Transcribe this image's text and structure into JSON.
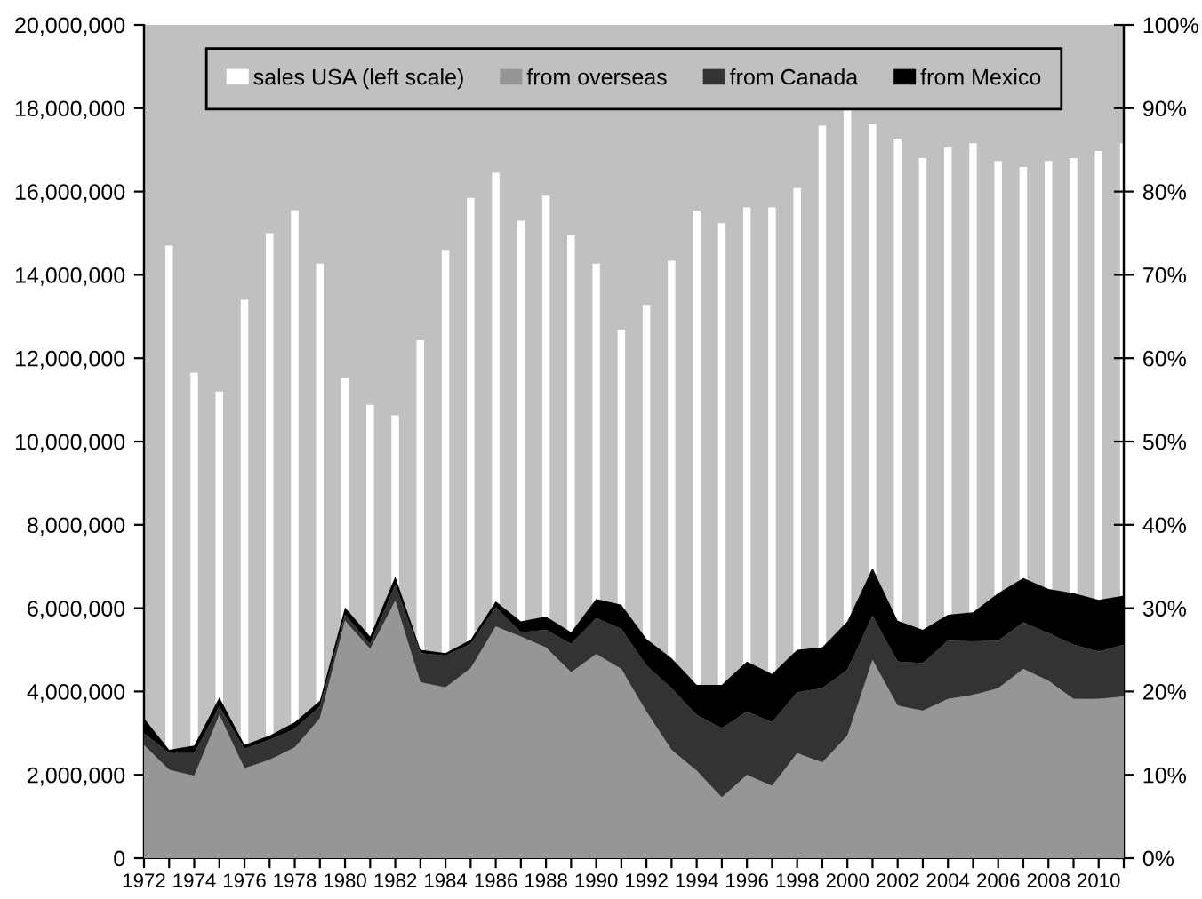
{
  "chart_data": {
    "type": "bar",
    "categories": [
      "1972",
      null,
      "1974",
      null,
      "1976",
      null,
      "1978",
      null,
      "1980",
      null,
      "1982",
      null,
      "1984",
      null,
      "1986",
      null,
      "1988",
      null,
      "1990",
      null,
      "1992",
      null,
      "1994",
      null,
      "1996",
      null,
      "1998",
      null,
      "2000",
      null,
      "2002",
      null,
      "2004",
      null,
      "2006",
      null,
      "2008",
      null,
      "2010",
      null
    ],
    "series": [
      {
        "name": "sales USA (left scale)",
        "axis": "y",
        "color": "#ffffff",
        "values": [
          null,
          14700000,
          11650000,
          11200000,
          13400000,
          15000000,
          15550000,
          14270000,
          11530000,
          10880000,
          10630000,
          12430000,
          14600000,
          15850000,
          16450000,
          15300000,
          15900000,
          14950000,
          14270000,
          12680000,
          13280000,
          14340000,
          15540000,
          15240000,
          15620000,
          15620000,
          16080000,
          17580000,
          17970000,
          17610000,
          17270000,
          16800000,
          17060000,
          17160000,
          16730000,
          16590000,
          16730000,
          16800000,
          16970000,
          17160000
        ]
      },
      {
        "name": "from overseas",
        "type": "area",
        "axis": "y2",
        "color": "#969696",
        "values": [
          13.6,
          10.6,
          9.9,
          17.2,
          10.8,
          11.8,
          13.3,
          16.8,
          28.5,
          25.1,
          30.9,
          21.1,
          20.5,
          22.8,
          27.8,
          26.6,
          25.3,
          22.3,
          24.5,
          22.7,
          17.6,
          13.0,
          10.5,
          7.3,
          10.0,
          8.7,
          12.6,
          11.5,
          14.7,
          23.8,
          18.3,
          17.7,
          19.1,
          19.6,
          20.4,
          22.7,
          21.3,
          19.1,
          19.1,
          19.4
        ]
      },
      {
        "name": "from Canada",
        "type": "area",
        "axis": "y2",
        "color": "#333333",
        "values": [
          1.4,
          2.0,
          2.7,
          1.0,
          2.3,
          2.4,
          2.2,
          1.4,
          0.7,
          0.6,
          1.9,
          3.5,
          3.8,
          2.9,
          2.3,
          0.5,
          2.1,
          3.4,
          4.3,
          4.8,
          5.5,
          7.4,
          6.7,
          8.3,
          7.6,
          7.6,
          7.3,
          8.9,
          7.9,
          5.3,
          5.3,
          5.7,
          7.0,
          6.4,
          5.7,
          5.6,
          5.7,
          6.5,
          5.7,
          6.2
        ]
      },
      {
        "name": "from Mexico",
        "type": "area",
        "axis": "y2",
        "color": "#000000",
        "values": [
          1.8,
          0.4,
          0.9,
          1.1,
          0.5,
          0.5,
          0.8,
          0.7,
          0.9,
          0.9,
          1.0,
          0.4,
          0.3,
          0.5,
          0.7,
          1.3,
          1.6,
          1.4,
          2.3,
          2.9,
          3.2,
          3.6,
          3.6,
          5.2,
          6.0,
          5.8,
          5.1,
          4.9,
          5.8,
          5.7,
          4.9,
          4.0,
          3.1,
          3.5,
          5.7,
          5.3,
          5.3,
          6.2,
          6.2,
          5.9
        ]
      }
    ],
    "stacked": true,
    "ylim": [
      0,
      20000000
    ],
    "yticks": [
      0,
      {
        "value": 2000000,
        "label": "2,000,000"
      },
      {
        "value": 4000000,
        "label": "4,000,000"
      },
      {
        "value": 6000000,
        "label": "6,000,000"
      },
      {
        "value": 8000000,
        "label": "8,000,000"
      },
      {
        "value": 10000000,
        "label": "10,000,000"
      },
      {
        "value": 12000000,
        "label": "12,000,000"
      },
      {
        "value": 14000000,
        "label": "14,000,000"
      },
      {
        "value": 16000000,
        "label": "16,000,000"
      },
      {
        "value": 18000000,
        "label": "18,000,000"
      },
      {
        "value": 20000000,
        "label": "20,000,000"
      }
    ],
    "y2lim": [
      0,
      100
    ],
    "y2ticks": [
      {
        "value": 0,
        "label": "0%"
      },
      {
        "value": 10,
        "label": "10%"
      },
      {
        "value": 20,
        "label": "20%"
      },
      {
        "value": 30,
        "label": "30%"
      },
      {
        "value": 40,
        "label": "40%"
      },
      {
        "value": 50,
        "label": "50%"
      },
      {
        "value": 60,
        "label": "60%"
      },
      {
        "value": 70,
        "label": "70%"
      },
      {
        "value": 80,
        "label": "80%"
      },
      {
        "value": 90,
        "label": "90%"
      },
      {
        "value": 100,
        "label": "100%"
      }
    ],
    "legend": "top",
    "grid": false
  }
}
